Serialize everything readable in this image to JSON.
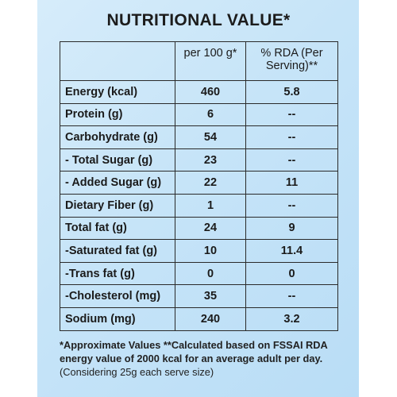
{
  "title": "NUTRITIONAL VALUE*",
  "columns": {
    "name": "",
    "per100": "per 100 g*",
    "rda": "% RDA (Per Serving)**"
  },
  "rows": [
    {
      "name": "Energy (kcal)",
      "per100": "460",
      "rda": "5.8"
    },
    {
      "name": "Protein (g)",
      "per100": "6",
      "rda": "--"
    },
    {
      "name": "Carbohydrate (g)",
      "per100": "54",
      "rda": "--"
    },
    {
      "name": "- Total Sugar (g)",
      "per100": "23",
      "rda": "--"
    },
    {
      "name": "- Added Sugar (g)",
      "per100": "22",
      "rda": "11"
    },
    {
      "name": "Dietary Fiber (g)",
      "per100": "1",
      "rda": "--"
    },
    {
      "name": "Total fat (g)",
      "per100": "24",
      "rda": "9"
    },
    {
      "name": "-Saturated fat (g)",
      "per100": "10",
      "rda": "11.4"
    },
    {
      "name": "-Trans fat (g)",
      "per100": "0",
      "rda": "0"
    },
    {
      "name": "-Cholesterol (mg)",
      "per100": "35",
      "rda": "--"
    },
    {
      "name": "Sodium (mg)",
      "per100": "240",
      "rda": "3.2"
    }
  ],
  "footnote": {
    "bold_text": "*Approximate Values **Calculated based on FSSAI RDA energy value of 2000 kcal for an average adult per day.",
    "normal_text": "(Considering 25g each serve size)"
  }
}
